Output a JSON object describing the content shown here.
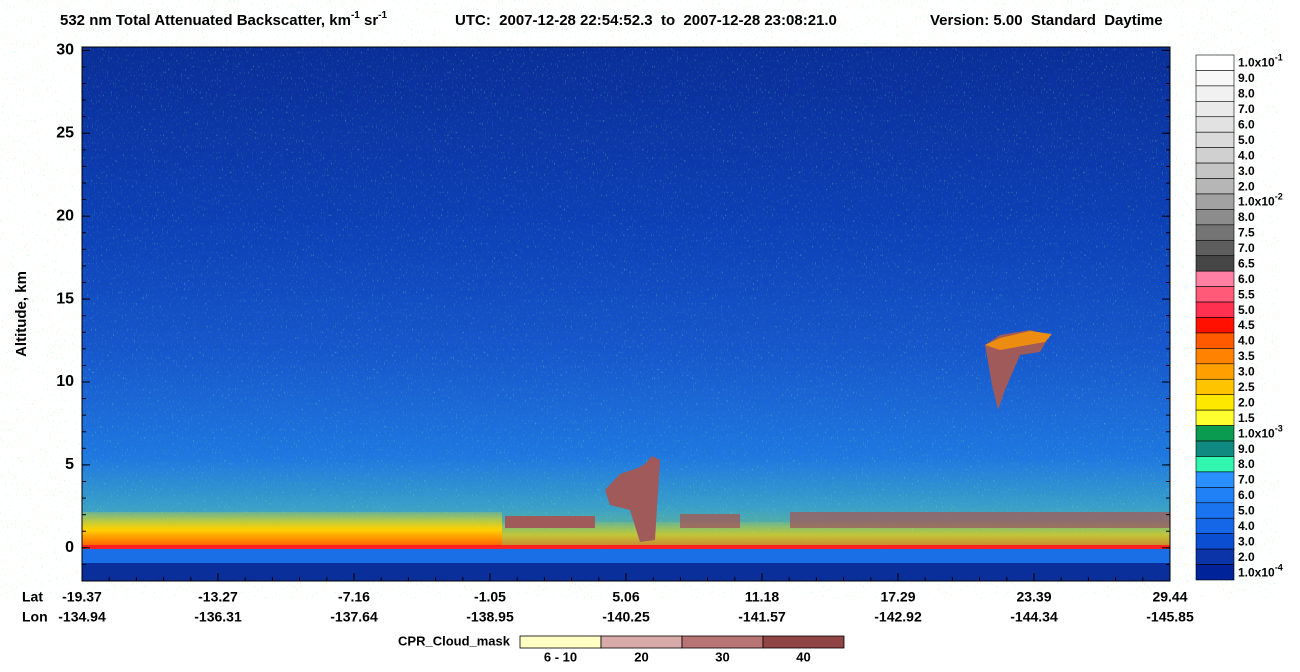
{
  "chart_data": {
    "type": "heatmap",
    "title": [
      {
        "text": "532 nm Total Attenuated Backscatter, km"
      },
      {
        "sup": "-1"
      },
      {
        "text": " sr"
      },
      {
        "sup": "-1"
      }
    ],
    "time_range": "UTC:  2007-12-28 22:54:52.3  to  2007-12-28 23:08:21.0",
    "version": "Version: 5.00  Standard  Daytime",
    "y_label": "Altitude, km",
    "ylim": [
      -2,
      30.2
    ],
    "yticks": [
      0,
      5,
      10,
      15,
      20,
      25,
      30
    ],
    "x_row_labels": [
      "Lat",
      "Lon"
    ],
    "lat": [
      -19.37,
      -13.27,
      -7.16,
      -1.05,
      5.06,
      11.18,
      17.29,
      23.39,
      29.44
    ],
    "lon": [
      -134.94,
      -136.31,
      -137.64,
      -138.95,
      -140.25,
      -141.57,
      -142.92,
      -144.34,
      -145.85
    ],
    "colorbar": [
      {
        "value": 0.1,
        "label": "1.0x10",
        "exp": "-1",
        "color": "#ffffff"
      },
      {
        "value": 0.09,
        "label": "9.0",
        "color": "#f8f8f8"
      },
      {
        "value": 0.08,
        "label": "8.0",
        "color": "#f1f1f1"
      },
      {
        "value": 0.07,
        "label": "7.0",
        "color": "#eaeaea"
      },
      {
        "value": 0.06,
        "label": "6.0",
        "color": "#e2e2e2"
      },
      {
        "value": 0.05,
        "label": "5.0",
        "color": "#dadada"
      },
      {
        "value": 0.04,
        "label": "4.0",
        "color": "#d0d0d0"
      },
      {
        "value": 0.03,
        "label": "3.0",
        "color": "#c4c4c4"
      },
      {
        "value": 0.02,
        "label": "2.0",
        "color": "#b6b6b6"
      },
      {
        "value": 0.01,
        "label": "1.0x10",
        "exp": "-2",
        "color": "#a2a2a2"
      },
      {
        "value": 0.008,
        "label": "8.0",
        "color": "#8c8c8c"
      },
      {
        "value": 0.0075,
        "label": "7.5",
        "color": "#747474"
      },
      {
        "value": 0.007,
        "label": "7.0",
        "color": "#5e5e5e"
      },
      {
        "value": 0.0065,
        "label": "6.5",
        "color": "#464646"
      },
      {
        "value": 0.006,
        "label": "6.0",
        "color": "#ff80a4"
      },
      {
        "value": 0.0055,
        "label": "5.5",
        "color": "#ff5a78"
      },
      {
        "value": 0.005,
        "label": "5.0",
        "color": "#ff3050"
      },
      {
        "value": 0.0045,
        "label": "4.5",
        "color": "#ff1000"
      },
      {
        "value": 0.004,
        "label": "4.0",
        "color": "#ff5a00"
      },
      {
        "value": 0.0035,
        "label": "3.5",
        "color": "#ff8200"
      },
      {
        "value": 0.003,
        "label": "3.0",
        "color": "#ffa000"
      },
      {
        "value": 0.0025,
        "label": "2.5",
        "color": "#ffc400"
      },
      {
        "value": 0.002,
        "label": "2.0",
        "color": "#ffe800"
      },
      {
        "value": 0.0015,
        "label": "1.5",
        "color": "#ffff30"
      },
      {
        "value": 0.001,
        "label": "1.0x10",
        "exp": "-3",
        "color": "#0a9a50"
      },
      {
        "value": 0.0009,
        "label": "9.0",
        "color": "#108a80"
      },
      {
        "value": 0.0008,
        "label": "8.0",
        "color": "#30f6b0"
      },
      {
        "value": 0.0007,
        "label": "7.0",
        "color": "#2a90ff"
      },
      {
        "value": 0.0006,
        "label": "6.0",
        "color": "#2080f6"
      },
      {
        "value": 0.0005,
        "label": "5.0",
        "color": "#1a74f0"
      },
      {
        "value": 0.0004,
        "label": "4.0",
        "color": "#1666e8"
      },
      {
        "value": 0.0003,
        "label": "3.0",
        "color": "#0c4ed2"
      },
      {
        "value": 0.0002,
        "label": "2.0",
        "color": "#0a34a8"
      },
      {
        "value": 0.0001,
        "label": "1.0x10",
        "exp": "-4",
        "color": "#00239a"
      }
    ],
    "mask_title": "CPR_Cloud_mask",
    "mask_legend": [
      {
        "label": "6 - 10",
        "color": "#ffffc4"
      },
      {
        "label": "20",
        "color": "#d8aaaa"
      },
      {
        "label": "30",
        "color": "#b87474"
      },
      {
        "label": "40",
        "color": "#904444"
      }
    ]
  }
}
